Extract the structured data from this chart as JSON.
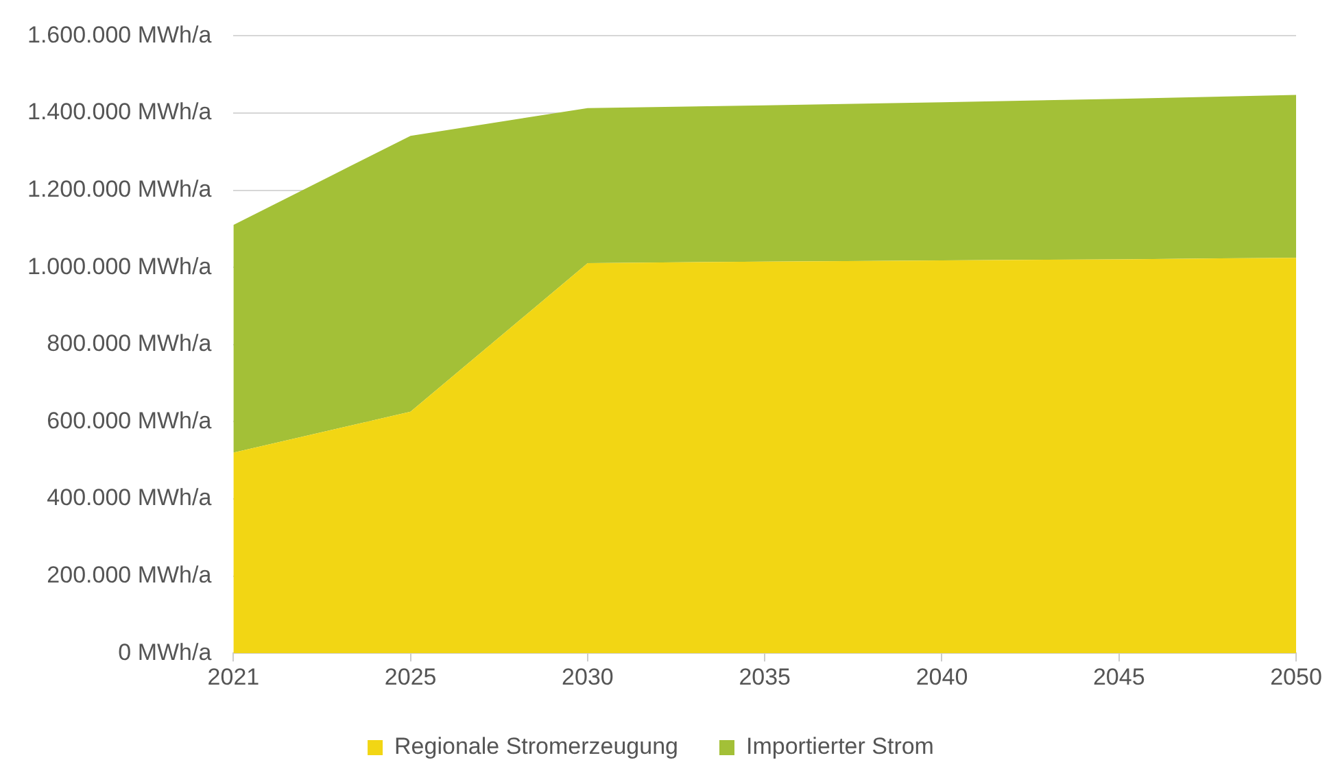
{
  "chart_data": {
    "type": "area",
    "stacked": true,
    "categories": [
      "2021",
      "2025",
      "2030",
      "2035",
      "2040",
      "2045",
      "2050"
    ],
    "series": [
      {
        "name": "Regionale Stromerzeugung",
        "color": "#f2d614",
        "values": [
          520000,
          626000,
          1011000,
          1015000,
          1018000,
          1021000,
          1025000
        ]
      },
      {
        "name": "Importierter Strom",
        "color": "#a3c037",
        "values": [
          590000,
          715000,
          402000,
          405000,
          410000,
          416000,
          422000
        ]
      }
    ],
    "ylim": [
      0,
      1600000
    ],
    "yticks": [
      {
        "value": 0,
        "label": "0 MWh/a"
      },
      {
        "value": 200000,
        "label": "200.000 MWh/a"
      },
      {
        "value": 400000,
        "label": "400.000 MWh/a"
      },
      {
        "value": 600000,
        "label": "600.000 MWh/a"
      },
      {
        "value": 800000,
        "label": "800.000 MWh/a"
      },
      {
        "value": 1000000,
        "label": "1.000.000 MWh/a"
      },
      {
        "value": 1200000,
        "label": "1.200.000 MWh/a"
      },
      {
        "value": 1400000,
        "label": "1.400.000 MWh/a"
      },
      {
        "value": 1600000,
        "label": "1.600.000 MWh/a"
      }
    ],
    "grid": "y",
    "legend": "bottom"
  }
}
